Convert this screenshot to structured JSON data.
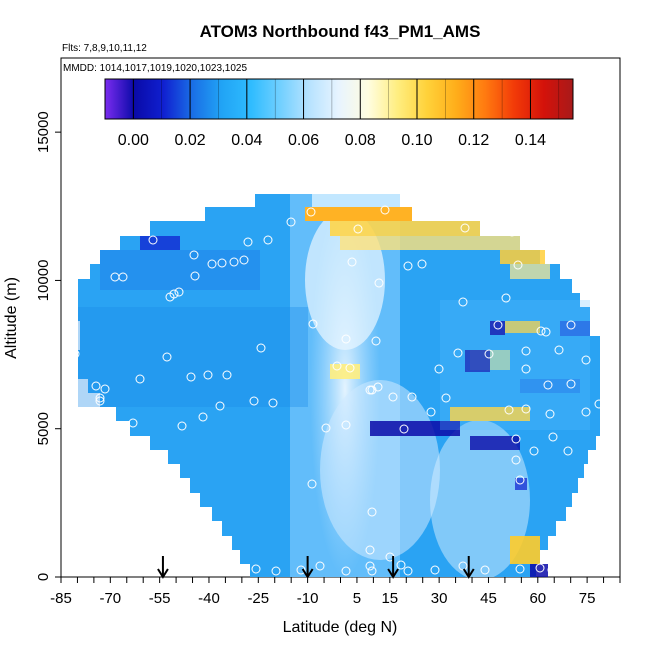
{
  "chart_data": {
    "type": "heatmap",
    "title": "ATOM3 Northbound f43_PM1_AMS",
    "subtitle_flights": "Flts: 7,8,9,10,11,12",
    "subtitle_dates": "MMDD: 1014,1017,1019,1020,1023,1025",
    "xlabel": "Latitude (deg N)",
    "ylabel": "Altitude (m)",
    "xlim": [
      -85,
      85
    ],
    "ylim": [
      0,
      17500
    ],
    "xticks": [
      "-85",
      "-70",
      "-55",
      "-40",
      "-25",
      "-10",
      "5",
      "15",
      "30",
      "45",
      "60",
      "75"
    ],
    "yticks": [
      "0",
      "5000",
      "10000",
      "15000"
    ],
    "colorbar": {
      "min": -0.01,
      "max": 0.155,
      "tick_labels": [
        "0.00",
        "0.02",
        "0.04",
        "0.06",
        "0.08",
        "0.10",
        "0.12",
        "0.14"
      ],
      "colors": [
        "#7b2cf0",
        "#0a0aa8",
        "#1020d0",
        "#1a6fe6",
        "#21a4f5",
        "#2fbcff",
        "#72d0ff",
        "#b8e3ff",
        "#e8f4ff",
        "#fffde0",
        "#ffee80",
        "#ffd23a",
        "#ffae1a",
        "#ff7a10",
        "#f23a08",
        "#d4120a",
        "#a81a1a"
      ]
    },
    "flight_markers_lat": [
      -54,
      -10,
      16,
      39
    ],
    "colors": {
      "background_field": "#2fa4f5",
      "arrow": "#000000"
    }
  }
}
